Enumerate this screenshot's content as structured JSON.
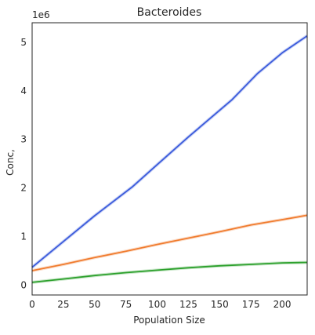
{
  "chart_data": {
    "type": "line",
    "title": "Bacteroides",
    "xlabel": "Population Size",
    "ylabel": "Conc,",
    "y_offset_label": "1e6",
    "xlim": [
      0,
      220
    ],
    "ylim": [
      -0.2,
      5.4
    ],
    "x_ticks": [
      0,
      25,
      50,
      75,
      100,
      125,
      150,
      175,
      200
    ],
    "y_ticks": [
      0,
      1,
      2,
      3,
      4,
      5
    ],
    "grid": false,
    "legend": "none",
    "series": [
      {
        "color": "#3b5bdb",
        "x": [
          0,
          25,
          50,
          80,
          100,
          125,
          160,
          180,
          200,
          220
        ],
        "y": [
          0.37,
          0.9,
          1.43,
          2.02,
          2.48,
          3.05,
          3.82,
          4.35,
          4.78,
          5.13
        ]
      },
      {
        "color": "#f07b2e",
        "x": [
          0,
          25,
          50,
          75,
          100,
          125,
          150,
          175,
          200,
          220
        ],
        "y": [
          0.3,
          0.43,
          0.57,
          0.7,
          0.84,
          0.97,
          1.1,
          1.24,
          1.35,
          1.44
        ]
      },
      {
        "color": "#2ca02c",
        "x": [
          0,
          25,
          50,
          75,
          100,
          125,
          150,
          175,
          200,
          220
        ],
        "y": [
          0.06,
          0.13,
          0.2,
          0.26,
          0.31,
          0.36,
          0.4,
          0.43,
          0.46,
          0.47
        ]
      }
    ]
  }
}
